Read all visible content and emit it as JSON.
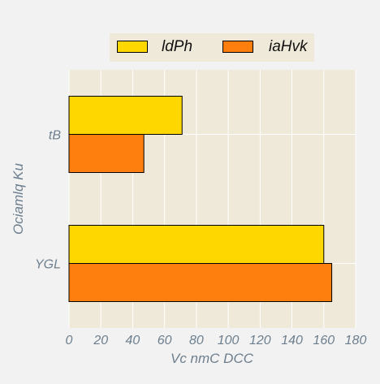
{
  "chart_data": {
    "type": "bar",
    "orientation": "horizontal",
    "categories": [
      "tB",
      "YGL"
    ],
    "series": [
      {
        "name": "ldPh",
        "color": "#ffd700",
        "values": [
          71,
          160
        ]
      },
      {
        "name": "iaHvk",
        "color": "#ff7f0e",
        "values": [
          47,
          165
        ]
      }
    ],
    "xlabel": "Vc nmC DCC",
    "ylabel": "Ociamlq Ku",
    "xlim": [
      0,
      180
    ],
    "xticks": [
      0,
      20,
      40,
      60,
      80,
      100,
      120,
      140,
      160,
      180
    ],
    "grid": true,
    "legend_position": "top-center",
    "background_color": "#efe9d9"
  }
}
